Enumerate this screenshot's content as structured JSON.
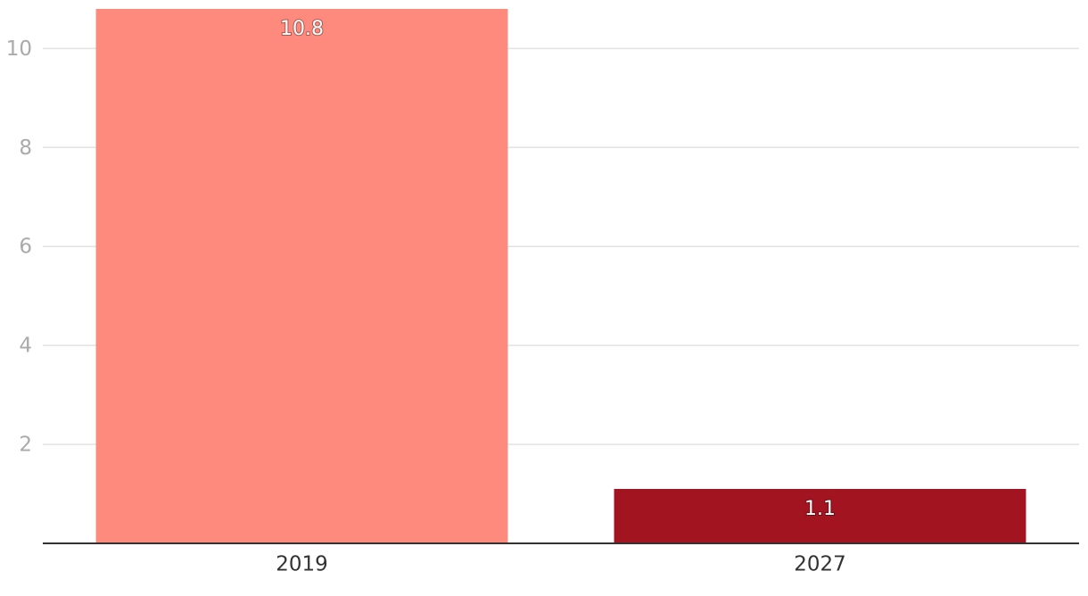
{
  "chart_data": {
    "type": "bar",
    "categories": [
      "2019",
      "2027"
    ],
    "values": [
      10.8,
      1.1
    ],
    "colors": [
      "#fe897d",
      "#a31421"
    ],
    "ylim": [
      0,
      10.8
    ],
    "yticks": [
      2,
      4,
      6,
      8,
      10
    ],
    "grid": true
  }
}
